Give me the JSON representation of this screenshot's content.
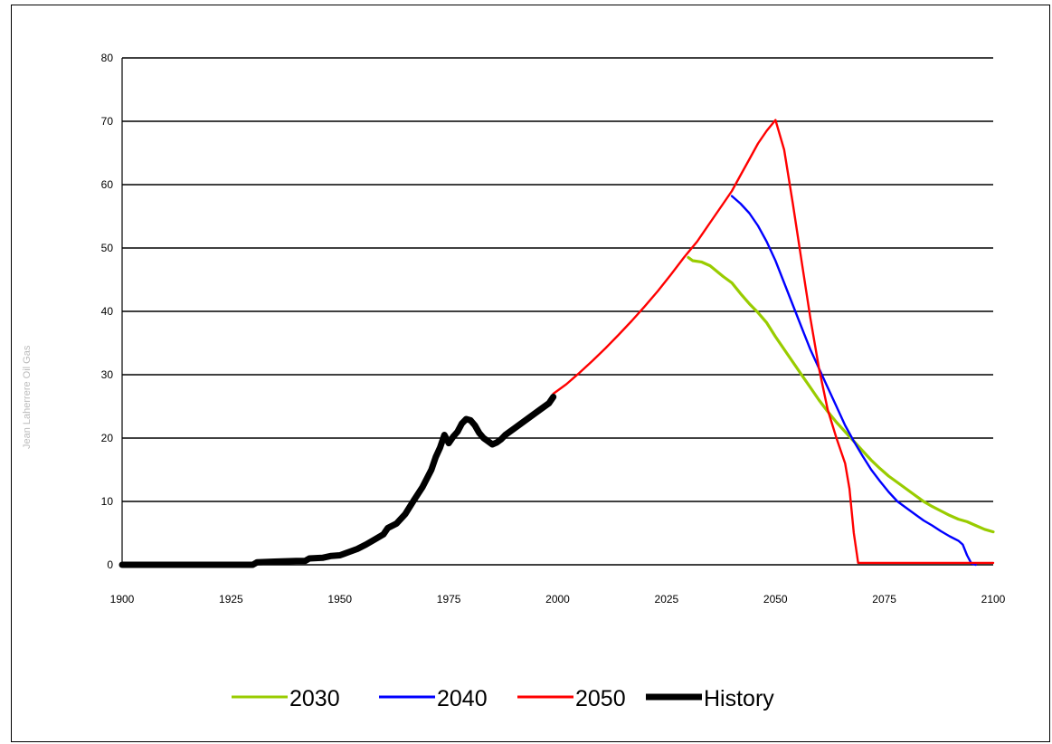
{
  "chart_data": {
    "type": "line",
    "title": "",
    "xlabel": "",
    "ylabel": "",
    "xlim": [
      1900,
      2100
    ],
    "ylim": [
      0,
      80
    ],
    "x_ticks": [
      1900,
      1925,
      1950,
      1975,
      2000,
      2025,
      2050,
      2075,
      2100
    ],
    "y_ticks": [
      0,
      10,
      20,
      30,
      40,
      50,
      60,
      70,
      80
    ],
    "grid": "horizontal",
    "legend_position": "bottom",
    "series": [
      {
        "name": "2030",
        "color": "#99cc00",
        "points": [
          [
            2030,
            48.5
          ],
          [
            2031,
            48
          ],
          [
            2033,
            47.8
          ],
          [
            2035,
            47.2
          ],
          [
            2038,
            45.5
          ],
          [
            2040,
            44.5
          ],
          [
            2042,
            42.8
          ],
          [
            2044,
            41.2
          ],
          [
            2046,
            39.8
          ],
          [
            2048,
            38.2
          ],
          [
            2050,
            36
          ],
          [
            2052,
            34
          ],
          [
            2054,
            32
          ],
          [
            2056,
            30
          ],
          [
            2058,
            28
          ],
          [
            2060,
            26
          ],
          [
            2062,
            24.2
          ],
          [
            2064,
            22.5
          ],
          [
            2066,
            21
          ],
          [
            2068,
            19.5
          ],
          [
            2070,
            18
          ],
          [
            2072,
            16.5
          ],
          [
            2074,
            15.2
          ],
          [
            2076,
            14
          ],
          [
            2078,
            13
          ],
          [
            2080,
            12
          ],
          [
            2082,
            11
          ],
          [
            2084,
            10
          ],
          [
            2086,
            9.2
          ],
          [
            2088,
            8.5
          ],
          [
            2090,
            7.8
          ],
          [
            2092,
            7.2
          ],
          [
            2094,
            6.8
          ],
          [
            2096,
            6.2
          ],
          [
            2098,
            5.6
          ],
          [
            2100,
            5.2
          ]
        ]
      },
      {
        "name": "2040",
        "color": "#0000ff",
        "points": [
          [
            2040,
            58.2
          ],
          [
            2042,
            57
          ],
          [
            2044,
            55.5
          ],
          [
            2046,
            53.5
          ],
          [
            2048,
            51
          ],
          [
            2050,
            48
          ],
          [
            2052,
            44.5
          ],
          [
            2054,
            41
          ],
          [
            2056,
            37.5
          ],
          [
            2058,
            34
          ],
          [
            2060,
            31
          ],
          [
            2062,
            28
          ],
          [
            2064,
            25
          ],
          [
            2066,
            22
          ],
          [
            2068,
            19.5
          ],
          [
            2070,
            17.2
          ],
          [
            2072,
            15
          ],
          [
            2074,
            13.2
          ],
          [
            2076,
            11.5
          ],
          [
            2078,
            10
          ],
          [
            2080,
            9
          ],
          [
            2082,
            8
          ],
          [
            2084,
            7
          ],
          [
            2086,
            6.2
          ],
          [
            2088,
            5.3
          ],
          [
            2090,
            4.5
          ],
          [
            2092,
            3.8
          ],
          [
            2093,
            3.2
          ],
          [
            2094,
            1.5
          ],
          [
            2095,
            0.2
          ],
          [
            2096,
            0
          ]
        ]
      },
      {
        "name": "2050",
        "color": "#ff0000",
        "points": [
          [
            1999,
            27
          ],
          [
            2002,
            28.5
          ],
          [
            2005,
            30.3
          ],
          [
            2008,
            32.2
          ],
          [
            2011,
            34.2
          ],
          [
            2014,
            36.3
          ],
          [
            2017,
            38.5
          ],
          [
            2020,
            40.8
          ],
          [
            2023,
            43.2
          ],
          [
            2026,
            45.8
          ],
          [
            2029,
            48.5
          ],
          [
            2032,
            51
          ],
          [
            2035,
            54
          ],
          [
            2038,
            57
          ],
          [
            2040,
            59
          ],
          [
            2042,
            61.5
          ],
          [
            2044,
            64
          ],
          [
            2046,
            66.5
          ],
          [
            2048,
            68.5
          ],
          [
            2050,
            70.2
          ],
          [
            2052,
            65.5
          ],
          [
            2054,
            57
          ],
          [
            2056,
            48
          ],
          [
            2058,
            39
          ],
          [
            2060,
            31
          ],
          [
            2062,
            24.5
          ],
          [
            2064,
            20
          ],
          [
            2066,
            16
          ],
          [
            2067,
            12
          ],
          [
            2068,
            5
          ],
          [
            2069,
            0.3
          ],
          [
            2075,
            0.3
          ],
          [
            2085,
            0.3
          ],
          [
            2100,
            0.3
          ]
        ]
      },
      {
        "name": "History",
        "color": "#000000",
        "points": [
          [
            1900,
            0
          ],
          [
            1910,
            0
          ],
          [
            1920,
            0
          ],
          [
            1930,
            0
          ],
          [
            1931,
            0.4
          ],
          [
            1935,
            0.5
          ],
          [
            1940,
            0.6
          ],
          [
            1942,
            0.6
          ],
          [
            1943,
            1
          ],
          [
            1946,
            1.1
          ],
          [
            1948,
            1.4
          ],
          [
            1950,
            1.5
          ],
          [
            1952,
            2
          ],
          [
            1954,
            2.5
          ],
          [
            1956,
            3.2
          ],
          [
            1958,
            4
          ],
          [
            1960,
            4.8
          ],
          [
            1961,
            5.8
          ],
          [
            1963,
            6.5
          ],
          [
            1965,
            8
          ],
          [
            1967,
            10.2
          ],
          [
            1969,
            12.3
          ],
          [
            1971,
            15
          ],
          [
            1972,
            17
          ],
          [
            1973,
            18.5
          ],
          [
            1974,
            20.5
          ],
          [
            1975,
            19.2
          ],
          [
            1976,
            20.2
          ],
          [
            1977,
            21
          ],
          [
            1978,
            22.3
          ],
          [
            1979,
            23
          ],
          [
            1980,
            22.8
          ],
          [
            1981,
            22
          ],
          [
            1982,
            20.8
          ],
          [
            1983,
            20
          ],
          [
            1984,
            19.5
          ],
          [
            1985,
            19
          ],
          [
            1986,
            19.3
          ],
          [
            1987,
            19.8
          ],
          [
            1988,
            20.5
          ],
          [
            1990,
            21.5
          ],
          [
            1992,
            22.5
          ],
          [
            1994,
            23.5
          ],
          [
            1996,
            24.5
          ],
          [
            1998,
            25.5
          ],
          [
            1999,
            26.5
          ]
        ]
      }
    ]
  },
  "watermark_text": "Jean Laherrere Oil Gas"
}
